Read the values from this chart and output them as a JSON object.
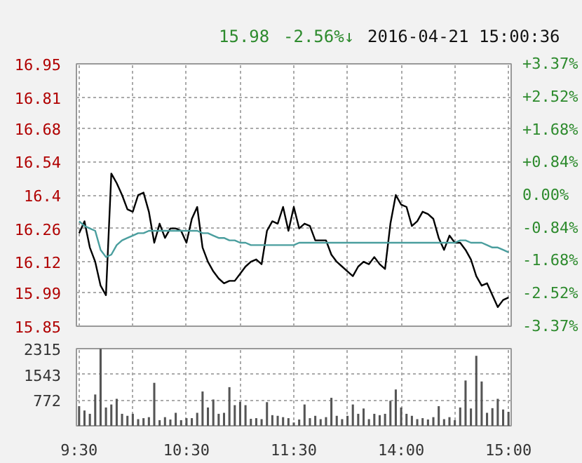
{
  "chart_data": [
    {
      "type": "line",
      "annotations": [
        "15.98",
        "-2.56%↓",
        "2016-04-21 15:00:36"
      ],
      "categories": [
        null,
        null,
        null,
        null,
        null,
        null,
        null,
        null,
        null,
        null,
        null,
        null,
        null,
        null,
        null,
        null,
        null,
        null,
        null,
        null,
        null,
        null,
        null,
        null,
        null,
        null,
        null,
        null,
        null,
        null,
        null,
        null,
        null,
        null,
        null,
        null,
        null,
        null,
        null,
        null,
        null,
        null,
        null,
        null,
        null,
        null,
        null,
        null,
        null,
        null,
        null,
        null,
        null,
        null,
        null,
        null,
        null,
        null,
        null,
        null,
        null,
        null,
        null,
        null,
        null,
        null,
        null,
        null,
        null,
        null,
        null,
        null,
        null,
        null,
        null,
        null,
        null,
        null,
        null,
        null,
        null
      ],
      "series": [
        {
          "color": "#000000",
          "values": [
            16.24,
            16.29,
            16.18,
            16.12,
            16.02,
            15.98,
            16.49,
            16.45,
            16.4,
            16.34,
            16.33,
            16.4,
            16.41,
            16.33,
            16.2,
            16.28,
            16.22,
            16.26,
            16.26,
            16.25,
            16.2,
            16.3,
            16.35,
            16.18,
            16.12,
            16.08,
            16.05,
            16.03,
            16.04,
            16.04,
            16.07,
            16.1,
            16.12,
            16.13,
            16.11,
            16.25,
            16.29,
            16.28,
            16.35,
            16.25,
            16.35,
            16.26,
            16.28,
            16.27,
            16.21,
            16.21,
            16.21,
            16.15,
            16.12,
            16.1,
            16.08,
            16.06,
            16.1,
            16.12,
            16.11,
            16.14,
            16.11,
            16.09,
            16.28,
            16.4,
            16.36,
            16.35,
            16.27,
            16.29,
            16.33,
            16.32,
            16.3,
            16.22,
            16.17,
            16.23,
            16.2,
            16.2,
            16.17,
            16.13,
            16.06,
            16.02,
            16.03,
            15.98,
            15.93,
            15.96,
            15.97
          ]
        },
        {
          "color": "#4a9e9e",
          "values": [
            16.29,
            16.27,
            16.26,
            16.25,
            16.17,
            16.14,
            16.15,
            16.19,
            16.21,
            16.22,
            16.23,
            16.24,
            16.24,
            16.25,
            16.25,
            16.25,
            16.25,
            16.25,
            16.25,
            16.25,
            16.25,
            16.25,
            16.25,
            16.24,
            16.24,
            16.23,
            16.22,
            16.22,
            16.21,
            16.21,
            16.2,
            16.2,
            16.19,
            16.19,
            16.19,
            16.19,
            16.19,
            16.19,
            16.19,
            16.19,
            16.19,
            16.2,
            16.2,
            16.2,
            16.2,
            16.2,
            16.2,
            16.2,
            16.2,
            16.2,
            16.2,
            16.2,
            16.2,
            16.2,
            16.2,
            16.2,
            16.2,
            16.2,
            16.2,
            16.2,
            16.2,
            16.2,
            16.2,
            16.2,
            16.2,
            16.2,
            16.2,
            16.2,
            16.2,
            16.2,
            16.2,
            16.21,
            16.21,
            16.2,
            16.2,
            16.2,
            16.19,
            16.18,
            16.18,
            16.17,
            16.16
          ]
        }
      ],
      "ylim": [
        15.85,
        16.95
      ],
      "yticks": [
        15.85,
        15.99,
        16.12,
        16.26,
        16.4,
        16.54,
        16.68,
        16.81,
        16.95
      ],
      "y2lim": [
        -3.37,
        3.37
      ],
      "y2ticks": [
        {
          "value": -3.37,
          "label": "-3.37%"
        },
        {
          "value": -2.52,
          "label": "-2.52%"
        },
        {
          "value": -1.68,
          "label": "-1.68%"
        },
        {
          "value": -0.84,
          "label": "-0.84%"
        },
        {
          "value": 0,
          "label": "0.00%"
        },
        {
          "value": 0.84,
          "label": "+0.84%"
        },
        {
          "value": 1.68,
          "label": "+1.68%"
        },
        {
          "value": 2.52,
          "label": "+2.52%"
        },
        {
          "value": 3.37,
          "label": "+3.37%"
        }
      ],
      "tick_labels": "y",
      "grid": true,
      "line_style": "solid"
    },
    {
      "type": "bar",
      "categories": [
        "9:30",
        null,
        null,
        null,
        null,
        null,
        null,
        null,
        null,
        null,
        null,
        null,
        null,
        null,
        null,
        null,
        null,
        null,
        null,
        null,
        "10:30",
        null,
        null,
        null,
        null,
        null,
        null,
        null,
        null,
        null,
        null,
        null,
        null,
        null,
        null,
        null,
        null,
        null,
        null,
        null,
        "11:30",
        null,
        null,
        null,
        null,
        null,
        null,
        null,
        null,
        null,
        null,
        null,
        null,
        null,
        null,
        null,
        null,
        null,
        null,
        null,
        "14:00",
        null,
        null,
        null,
        null,
        null,
        null,
        null,
        null,
        null,
        null,
        null,
        null,
        null,
        null,
        null,
        null,
        null,
        null,
        null,
        "15:00"
      ],
      "series": [
        {
          "color": "#555555",
          "values": [
            590,
            460,
            360,
            940,
            2310,
            550,
            640,
            810,
            360,
            300,
            360,
            200,
            230,
            260,
            1290,
            170,
            260,
            190,
            390,
            170,
            230,
            230,
            390,
            1030,
            550,
            790,
            360,
            390,
            1160,
            620,
            720,
            620,
            210,
            230,
            200,
            710,
            320,
            300,
            260,
            230,
            100,
            190,
            640,
            230,
            300,
            200,
            260,
            840,
            300,
            200,
            300,
            640,
            360,
            520,
            200,
            360,
            320,
            360,
            750,
            1090,
            550,
            360,
            300,
            200,
            230,
            190,
            260,
            590,
            200,
            260,
            170,
            550,
            1360,
            520,
            2100,
            1330,
            390,
            530,
            810,
            490,
            420
          ]
        }
      ],
      "ylim": [
        0,
        2315
      ],
      "yticks": [
        772,
        1543,
        2315
      ],
      "grid": true
    }
  ]
}
